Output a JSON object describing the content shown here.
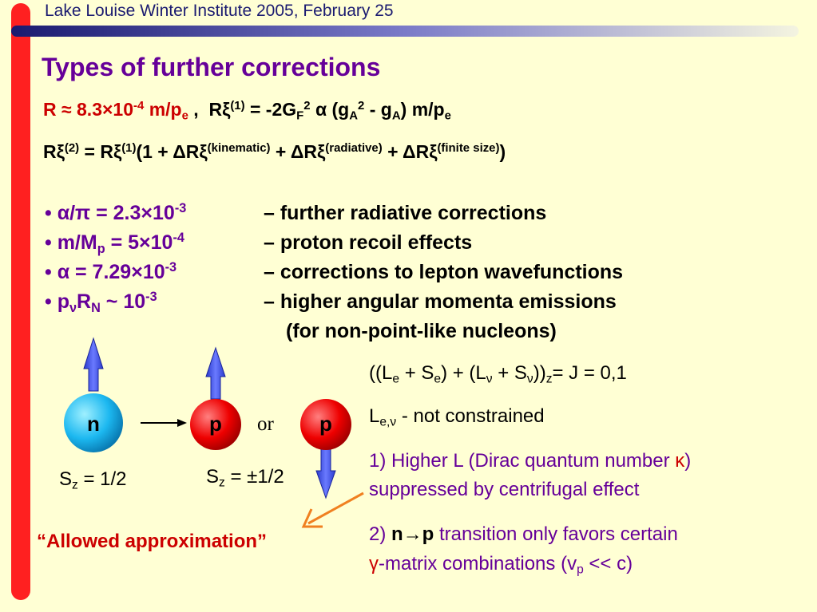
{
  "header": "Lake Louise Winter Institute 2005, February 25",
  "title": "Types of further corrections",
  "formula1": [
    "R ≈ 8.3×10",
    "-4",
    " m/p",
    "e",
    " ,",
    "Rξ",
    "(1)",
    " = -2G",
    "F",
    "2",
    " α (g",
    "A",
    "2",
    " - g",
    "A",
    ") m/p",
    "e"
  ],
  "formula2": [
    "Rξ",
    "(2)",
    " = Rξ",
    "(1)",
    "(1 + ΔRξ",
    "(kinematic)",
    " + ΔRξ",
    "(radiative)",
    " + ΔRξ",
    "(finite size)",
    ")"
  ],
  "bullets": [
    {
      "label": [
        "• α/π = 2.3×10",
        "-3"
      ],
      "text": "– further radiative corrections"
    },
    {
      "label": [
        "• m/M",
        "p",
        " = 5×10",
        "-4"
      ],
      "text": "– proton recoil effects"
    },
    {
      "label": [
        "• α = 7.29×10",
        "-3"
      ],
      "text": "– corrections to lepton wavefunctions"
    },
    {
      "label": [
        "• p",
        "ν",
        "R",
        "N",
        " ~ 10",
        "-3"
      ],
      "text": "– higher angular momenta emissions"
    }
  ],
  "continuation": "(for non-point-like nucleons)",
  "diagram": {
    "particles": [
      "n",
      "p",
      "p"
    ],
    "or": "or",
    "sz": [
      [
        "S",
        "z",
        " = 1/2"
      ],
      [
        "S",
        "z",
        " = ±1/2"
      ]
    ],
    "allowed": "“Allowed approximation”"
  },
  "notes": [
    [
      "((L",
      "e",
      " + S",
      "e",
      ") + (L",
      "ν",
      " + S",
      "ν",
      "))",
      "z",
      "= J = 0,1"
    ],
    [
      "L",
      "e,ν",
      " - not constrained"
    ],
    [
      "1) Higher L (Dirac quantum number ",
      "κ",
      ")",
      "suppressed by centrifugal effect"
    ],
    [
      "2) ",
      "n→p",
      " transition only favors certain",
      "γ",
      "-matrix combinations (v",
      "p",
      " << c)"
    ]
  ]
}
